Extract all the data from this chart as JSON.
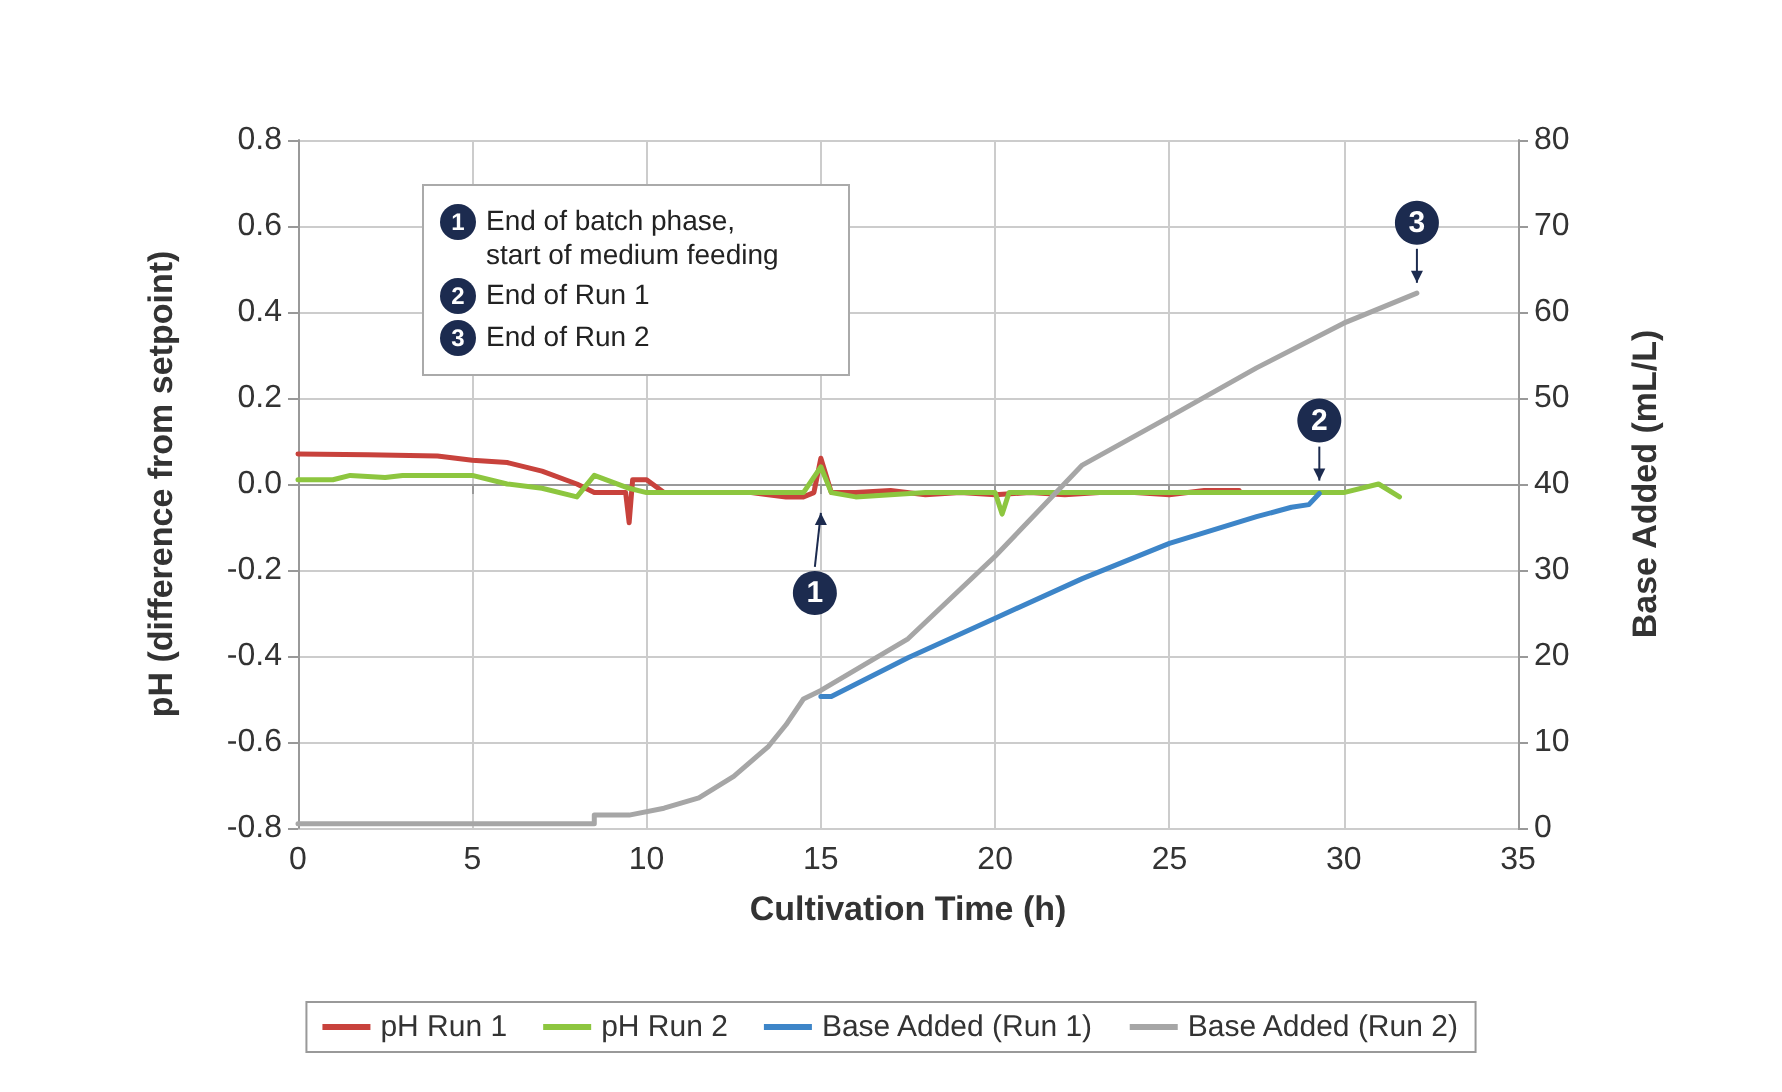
{
  "chart_data": {
    "type": "line",
    "xlabel": "Cultivation Time (h)",
    "ylabel": "pH (difference from setpoint)",
    "y2label": "Base Added (mL/L)",
    "xlim": [
      0,
      35
    ],
    "xticks": [
      0,
      5,
      10,
      15,
      20,
      25,
      30,
      35
    ],
    "ylim": [
      -0.8,
      0.8
    ],
    "yticks": [
      -0.8,
      -0.6,
      -0.4,
      -0.2,
      {
        "value": 0,
        "label": "0.0"
      },
      0.2,
      0.4,
      0.6,
      0.8
    ],
    "y2lim": [
      0,
      80
    ],
    "y2ticks": [
      0,
      10,
      20,
      30,
      40,
      50,
      60,
      70,
      80
    ],
    "grid": true,
    "legend": "bottom",
    "marker": "none",
    "line_style": "solid",
    "series": [
      {
        "name": "pH Run 1",
        "color": "#c8423c",
        "x": [
          0,
          2,
          4,
          5,
          6,
          7,
          8,
          8.5,
          9.2,
          9.4,
          9.5,
          9.6,
          10,
          10.5,
          12,
          13,
          14,
          14.5,
          14.8,
          15,
          15.3,
          16,
          17,
          18,
          19,
          20,
          21,
          22,
          23,
          24,
          25,
          26,
          27
        ],
        "values": [
          0.07,
          0.068,
          0.065,
          0.055,
          0.05,
          0.03,
          0.0,
          -0.02,
          -0.02,
          -0.02,
          -0.09,
          0.01,
          0.01,
          -0.02,
          -0.02,
          -0.02,
          -0.03,
          -0.03,
          -0.02,
          0.06,
          -0.02,
          -0.02,
          -0.015,
          -0.025,
          -0.02,
          -0.025,
          -0.02,
          -0.025,
          -0.02,
          -0.02,
          -0.025,
          -0.015,
          -0.015
        ]
      },
      {
        "name": "pH Run 2",
        "color": "#8dc63f",
        "x": [
          0,
          1,
          1.5,
          2.5,
          3,
          5,
          6,
          7,
          8,
          8.5,
          9.5,
          10,
          12,
          14,
          14.5,
          15,
          15.3,
          16,
          18,
          20,
          20.2,
          20.4,
          22,
          25,
          28,
          30,
          31,
          31.6
        ],
        "values": [
          0.01,
          0.01,
          0.02,
          0.015,
          0.02,
          0.02,
          0.0,
          -0.01,
          -0.03,
          0.02,
          -0.01,
          -0.02,
          -0.02,
          -0.02,
          -0.02,
          0.04,
          -0.02,
          -0.03,
          -0.02,
          -0.02,
          -0.07,
          -0.02,
          -0.02,
          -0.02,
          -0.02,
          -0.02,
          0.0,
          -0.03
        ]
      },
      {
        "name": "Base Added (Run 1)",
        "color": "#3d85c8",
        "axis": "y2",
        "x": [
          15,
          15.3,
          17.5,
          20,
          22.5,
          25,
          27.5,
          28.5,
          29,
          29.3
        ],
        "values": [
          15.3,
          15.3,
          19.8,
          24.4,
          29,
          33.1,
          36.2,
          37.3,
          37.6,
          38.9
        ]
      },
      {
        "name": "Base Added (Run 2)",
        "color": "#a6a6a6",
        "axis": "y2",
        "x": [
          0,
          8.5,
          8.5,
          9.5,
          10.5,
          11.5,
          12.5,
          13.5,
          14,
          14.5,
          15,
          17.5,
          20,
          22.5,
          25,
          27.5,
          30,
          32.1
        ],
        "values": [
          0.5,
          0.5,
          1.5,
          1.5,
          2.3,
          3.5,
          6,
          9.5,
          12,
          15,
          16,
          22,
          31.6,
          42.2,
          47.8,
          53.5,
          58.7,
          62.2
        ]
      }
    ],
    "annotations": [
      {
        "text": "1",
        "x": 15,
        "y": -0.03
      },
      {
        "text": "2",
        "x": 29.3,
        "y": -0.02
      },
      {
        "text": "3",
        "x": 32.1,
        "y": 0.44
      },
      "End of batch phase, start of medium feeding",
      "End of Run 1",
      "End of Run 2"
    ]
  }
}
